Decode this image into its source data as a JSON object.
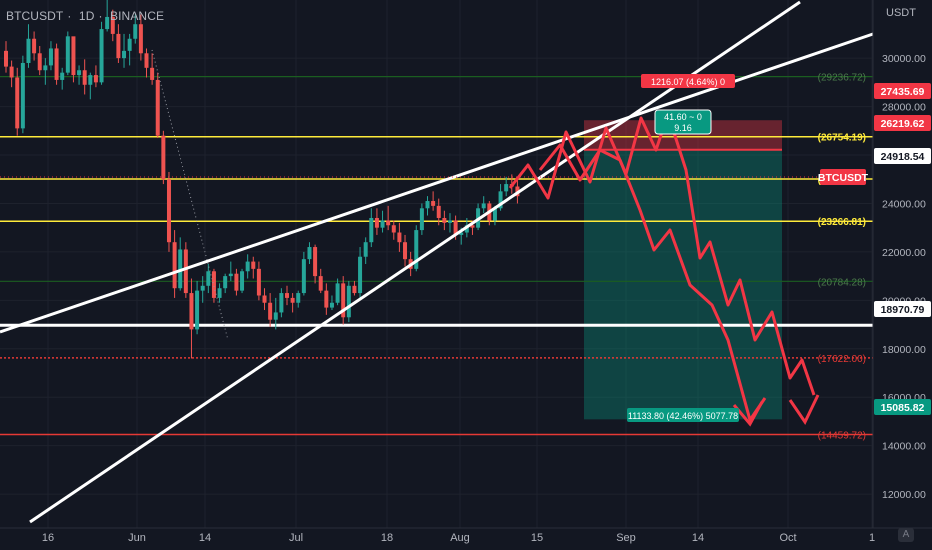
{
  "header": {
    "symbol": "BTCUSDT",
    "interval": "1D",
    "exchange": "BINANCE"
  },
  "axis": {
    "unit": "USDT",
    "auto_button": "A"
  },
  "colors": {
    "bg": "#131722",
    "up": "#26a69a",
    "down": "#ef5350",
    "yellow": "#ffeb3b",
    "green_line": "#1b5e20",
    "red_line": "#e53935"
  },
  "chart_data": {
    "type": "candlestick",
    "ylim": [
      10600,
      32400
    ],
    "y_ticks": [
      12000,
      14000,
      16000,
      18000,
      20000,
      22000,
      24000,
      26000,
      28000,
      30000
    ],
    "y_tick_labels": [
      "12000.00",
      "14000.00",
      "16000.00",
      "18000.00",
      "20000.00",
      "22000.00",
      "24000.00",
      "26000.00",
      "28000.00",
      "30000.00"
    ],
    "x_tick_labels": [
      "16",
      "Jun",
      "14",
      "Jul",
      "18",
      "Aug",
      "15",
      "Sep",
      "14",
      "Oct",
      "1"
    ],
    "horizontal_levels": [
      {
        "value": 29236.72,
        "label": "(29236.72)",
        "color": "#1b5e20"
      },
      {
        "value": 26754.19,
        "label": "(26754.19)",
        "color": "#ffeb3b"
      },
      {
        "value": 25010.5,
        "label": "(25010.50)",
        "color": "#ffeb3b"
      },
      {
        "value": 23266.81,
        "label": "(23266.81)",
        "color": "#ffeb3b"
      },
      {
        "value": 20784.28,
        "label": "(20784.28)",
        "color": "#1b5e20"
      },
      {
        "value": 18970.79,
        "label": "18970.79",
        "color": "#ffffff"
      },
      {
        "value": 17622.0,
        "label": "(17622.00)",
        "color": "#e53935"
      },
      {
        "value": 14459.72,
        "label": "(14459.72)",
        "color": "#e53935"
      }
    ],
    "price_tags": [
      {
        "value": 27435.69,
        "label": "27435.69",
        "bg": "#f23645"
      },
      {
        "value": 26219.62,
        "label": "26219.62",
        "bg": "#f23645"
      },
      {
        "value": 24918.54,
        "label": "24918.54",
        "bg": "#ffffff"
      },
      {
        "value": 24000.0,
        "label": "BTCUSDT",
        "bg": "#f23645"
      },
      {
        "value": 18970.79,
        "label": "18970.79",
        "bg": "#ffffff"
      },
      {
        "value": 15085.82,
        "label": "15085.82",
        "bg": "#089981"
      }
    ],
    "position": {
      "entry": 26219.62,
      "stop": 27435.69,
      "target": 15085.82,
      "stop_label": "1216.07 (4.64%) 0",
      "target_label": "11133.80 (42.46%) 5077.78",
      "entry_label_top": "41.60 ~ 0",
      "entry_label_bottom": "9.16"
    },
    "candles": [
      [
        30300,
        30700,
        29400,
        29650
      ],
      [
        29650,
        29900,
        28800,
        29200
      ],
      [
        29200,
        29600,
        26800,
        27100
      ],
      [
        27100,
        30100,
        26900,
        29800
      ],
      [
        29800,
        31400,
        29600,
        30800
      ],
      [
        30800,
        31100,
        29900,
        30200
      ],
      [
        30200,
        30500,
        29300,
        29500
      ],
      [
        29500,
        30000,
        28900,
        29700
      ],
      [
        29700,
        30700,
        29500,
        30400
      ],
      [
        30400,
        30600,
        28900,
        29100
      ],
      [
        29100,
        29600,
        28700,
        29400
      ],
      [
        29400,
        31100,
        29300,
        30900
      ],
      [
        30900,
        30700,
        29000,
        29300
      ],
      [
        29300,
        29700,
        28900,
        29500
      ],
      [
        29500,
        29950,
        28500,
        28900
      ],
      [
        28900,
        29400,
        28300,
        29300
      ],
      [
        29300,
        29700,
        28800,
        29000
      ],
      [
        29000,
        31500,
        28900,
        31200
      ],
      [
        31200,
        32400,
        31100,
        31700
      ],
      [
        31700,
        32000,
        30700,
        31000
      ],
      [
        31000,
        31400,
        29800,
        30000
      ],
      [
        30000,
        31000,
        29600,
        30300
      ],
      [
        30300,
        31000,
        29700,
        30800
      ],
      [
        30800,
        31800,
        30600,
        31400
      ],
      [
        31400,
        31800,
        29900,
        30200
      ],
      [
        30200,
        30400,
        29200,
        29600
      ],
      [
        29600,
        30200,
        28900,
        29100
      ],
      [
        29100,
        29400,
        26700,
        26800
      ],
      [
        26800,
        27000,
        24800,
        25000
      ],
      [
        25000,
        25300,
        22000,
        22400
      ],
      [
        22400,
        22900,
        20100,
        20500
      ],
      [
        20500,
        22600,
        20400,
        22100
      ],
      [
        22100,
        22400,
        20100,
        20300
      ],
      [
        20300,
        20900,
        17600,
        18800
      ],
      [
        18800,
        20800,
        18600,
        20400
      ],
      [
        20400,
        21000,
        19900,
        20600
      ],
      [
        20600,
        21500,
        20300,
        21200
      ],
      [
        21200,
        21300,
        19900,
        20100
      ],
      [
        20100,
        20700,
        19900,
        20500
      ],
      [
        20500,
        21100,
        20300,
        21000
      ],
      [
        21000,
        21600,
        20800,
        21100
      ],
      [
        21100,
        21300,
        20200,
        20400
      ],
      [
        20400,
        21300,
        20300,
        21200
      ],
      [
        21200,
        21900,
        20900,
        21600
      ],
      [
        21600,
        21800,
        20900,
        21300
      ],
      [
        21300,
        21600,
        20000,
        20200
      ],
      [
        20200,
        20500,
        19600,
        19900
      ],
      [
        19900,
        20300,
        18900,
        19200
      ],
      [
        19200,
        20100,
        18800,
        19500
      ],
      [
        19500,
        20500,
        19300,
        20300
      ],
      [
        20300,
        20600,
        19800,
        20100
      ],
      [
        20100,
        20300,
        19500,
        19900
      ],
      [
        19900,
        20400,
        19700,
        20300
      ],
      [
        20300,
        22000,
        20200,
        21700
      ],
      [
        21700,
        22400,
        21500,
        22200
      ],
      [
        22200,
        22300,
        20700,
        21000
      ],
      [
        21000,
        21300,
        20300,
        20400
      ],
      [
        20400,
        20700,
        19400,
        19700
      ],
      [
        19700,
        20200,
        19600,
        19900
      ],
      [
        19900,
        20900,
        19800,
        20700
      ],
      [
        20700,
        21000,
        19000,
        19300
      ],
      [
        19300,
        20800,
        19100,
        20600
      ],
      [
        20600,
        20800,
        20200,
        20300
      ],
      [
        20300,
        22200,
        20100,
        21800
      ],
      [
        21800,
        22600,
        21500,
        22400
      ],
      [
        22400,
        23800,
        22200,
        23400
      ],
      [
        23400,
        23800,
        22700,
        23000
      ],
      [
        23000,
        23700,
        22800,
        23300
      ],
      [
        23300,
        23900,
        22900,
        23100
      ],
      [
        23100,
        23300,
        22500,
        22800
      ],
      [
        22800,
        23200,
        22000,
        22400
      ],
      [
        22400,
        22700,
        21400,
        21700
      ],
      [
        21700,
        22000,
        21000,
        21300
      ],
      [
        21300,
        23100,
        21200,
        22900
      ],
      [
        22900,
        24000,
        22700,
        23800
      ],
      [
        23800,
        24300,
        23500,
        24100
      ],
      [
        24100,
        24500,
        23700,
        23900
      ],
      [
        23900,
        24200,
        23100,
        23400
      ],
      [
        23400,
        23700,
        22900,
        23200
      ],
      [
        23200,
        23600,
        22800,
        23300
      ],
      [
        23300,
        23500,
        22500,
        22700
      ],
      [
        22700,
        23000,
        22300,
        22800
      ],
      [
        22800,
        23400,
        22600,
        23100
      ],
      [
        23100,
        23300,
        22700,
        23000
      ],
      [
        23000,
        24000,
        22900,
        23800
      ],
      [
        23800,
        24300,
        23600,
        24000
      ],
      [
        24000,
        24100,
        23100,
        23300
      ],
      [
        23300,
        23900,
        23100,
        23800
      ],
      [
        23800,
        24800,
        23700,
        24500
      ],
      [
        24500,
        25100,
        24300,
        24800
      ],
      [
        24800,
        25200,
        24400,
        24700
      ],
      [
        24700,
        25100,
        24000,
        24300
      ]
    ],
    "annotations": [
      {
        "type": "trendline",
        "from": [
          "Jun-13",
          20500
        ],
        "to": [
          "Aug-25",
          26400
        ]
      },
      {
        "type": "trendline",
        "from": [
          "May-16",
          10600
        ],
        "to": [
          "Sep-10",
          31000
        ]
      }
    ]
  }
}
